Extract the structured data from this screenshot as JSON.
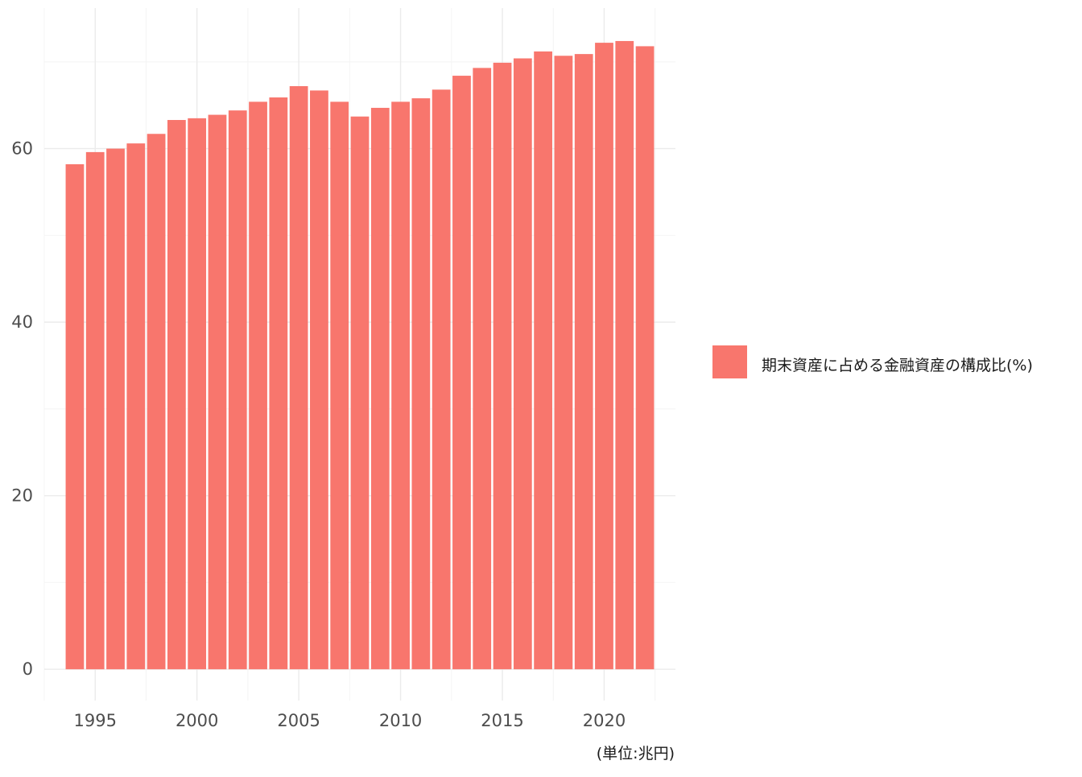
{
  "chart_data": {
    "type": "bar",
    "x": [
      1994,
      1995,
      1996,
      1997,
      1998,
      1999,
      2000,
      2001,
      2002,
      2003,
      2004,
      2005,
      2006,
      2007,
      2008,
      2009,
      2010,
      2011,
      2012,
      2013,
      2014,
      2015,
      2016,
      2017,
      2018,
      2019,
      2020,
      2021,
      2022
    ],
    "values": [
      58.2,
      59.6,
      60.0,
      60.6,
      61.7,
      63.3,
      63.5,
      63.9,
      64.4,
      65.4,
      65.9,
      67.2,
      66.7,
      65.4,
      63.7,
      64.7,
      65.4,
      65.8,
      66.8,
      68.4,
      69.3,
      69.9,
      70.4,
      71.2,
      70.7,
      70.9,
      72.2,
      72.4,
      71.8
    ],
    "x_ticks": [
      "1995",
      "2000",
      "2005",
      "2010",
      "2015",
      "2020"
    ],
    "y_ticks": [
      "0",
      "20",
      "40",
      "60"
    ],
    "xlim": [
      1992.5,
      2023.5
    ],
    "ylim": [
      -3.6,
      76.2
    ],
    "legend": {
      "label": "期末資産に占める金融資産の構成比(%)",
      "placement": "right"
    },
    "caption": "(単位:兆円)",
    "title": "",
    "xlabel": "",
    "ylabel": "",
    "grid": true,
    "colors": {
      "bar": "#F8766D",
      "grid_major": "#ebebeb",
      "grid_minor": "#f4f4f4",
      "background": "#ffffff"
    }
  }
}
